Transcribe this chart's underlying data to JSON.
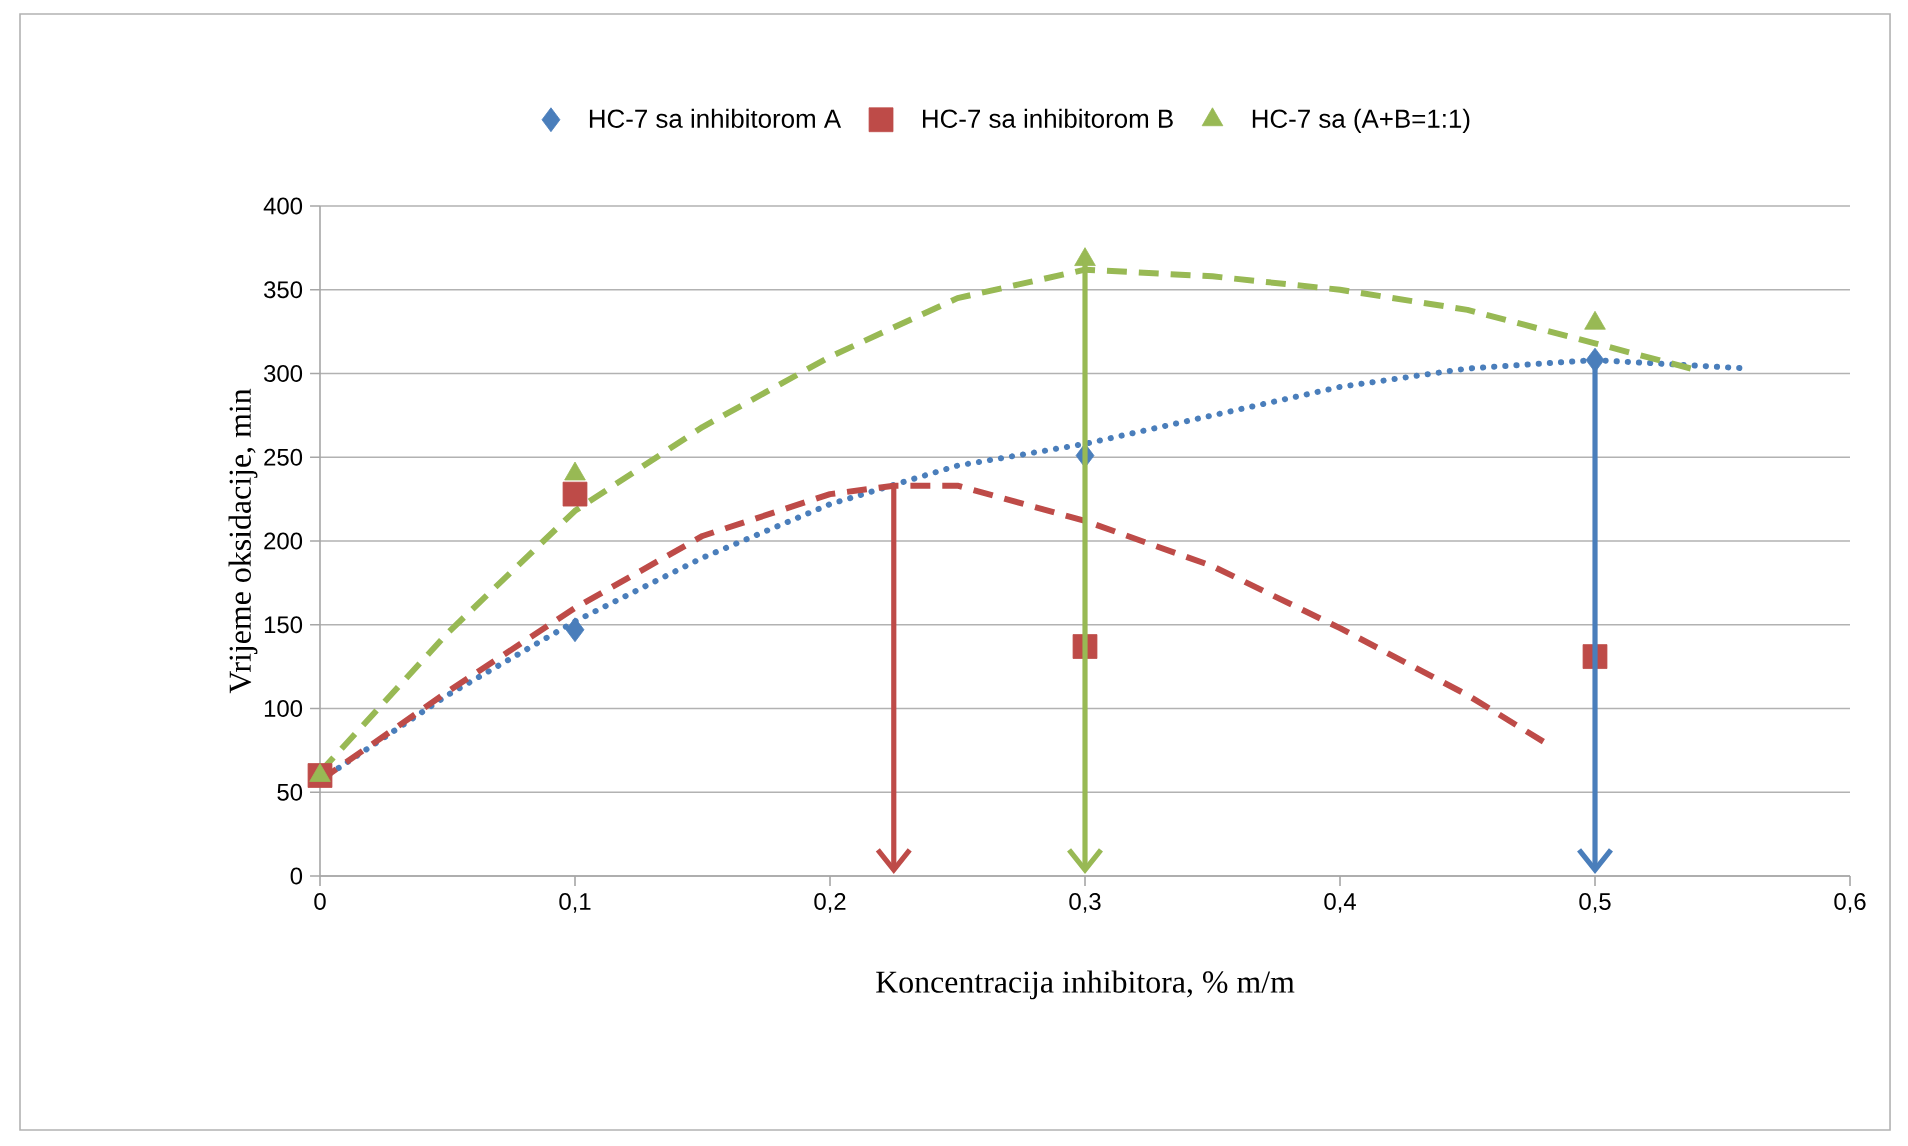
{
  "chart_data": {
    "type": "scatter",
    "xlabel": "Koncentracija inhibitora, % m/m",
    "ylabel": "Vrijeme oksidacije, min",
    "xlim": [
      0,
      0.6
    ],
    "ylim": [
      0,
      400
    ],
    "xticks": [
      0,
      {
        "value": 0.1,
        "label": "0,1"
      },
      {
        "value": 0.2,
        "label": "0,2"
      },
      {
        "value": 0.3,
        "label": "0,3"
      },
      {
        "value": 0.4,
        "label": "0,4"
      },
      {
        "value": 0.5,
        "label": "0,5"
      },
      {
        "value": 0.6,
        "label": "0,6"
      }
    ],
    "yticks": [
      0,
      50,
      100,
      150,
      200,
      250,
      300,
      350,
      400
    ],
    "grid": "y",
    "legend": "top",
    "ref_lines": [
      {
        "axis": "x",
        "value": 0.225,
        "color": "#be4b48"
      },
      {
        "axis": "x",
        "value": 0.3,
        "color": "#98b954"
      },
      {
        "axis": "x",
        "value": 0.5,
        "color": "#4a7ebb"
      }
    ],
    "series": [
      {
        "name": "HC-7 sa inhibitorom A",
        "marker": "diamond",
        "color": "#4a7ebb",
        "x": [
          0.1,
          0.3,
          0.5
        ],
        "values": [
          147,
          251,
          308
        ]
      },
      {
        "name": "HC-7 sa inhibitorom B",
        "marker": "square",
        "color": "#be4b48",
        "x": [
          0,
          0.1,
          0.3,
          0.5
        ],
        "values": [
          60,
          228,
          137,
          131
        ]
      },
      {
        "name": "HC-7 sa (A+B=1:1)",
        "marker": "triangle",
        "color": "#98b954",
        "x": [
          0,
          0.1,
          0.3,
          0.5
        ],
        "values": [
          60,
          240,
          368,
          330
        ]
      },
      {
        "type": "line",
        "line_style": "dotted",
        "color": "#4a7ebb",
        "x": [
          0,
          0.05,
          0.1,
          0.15,
          0.2,
          0.25,
          0.3,
          0.35,
          0.4,
          0.45,
          0.5,
          0.56
        ],
        "values": [
          57,
          108,
          152,
          190,
          222,
          245,
          258,
          275,
          292,
          303,
          308,
          303
        ]
      },
      {
        "type": "line",
        "line_style": "dashed",
        "color": "#be4b48",
        "x": [
          0,
          0.05,
          0.1,
          0.15,
          0.2,
          0.225,
          0.25,
          0.3,
          0.35,
          0.4,
          0.45,
          0.48
        ],
        "values": [
          57,
          110,
          160,
          203,
          228,
          233,
          233,
          212,
          185,
          148,
          108,
          80
        ]
      },
      {
        "type": "line",
        "line_style": "dashed",
        "color": "#98b954",
        "x": [
          0,
          0.05,
          0.1,
          0.15,
          0.2,
          0.25,
          0.3,
          0.35,
          0.4,
          0.45,
          0.5,
          0.54
        ],
        "values": [
          62,
          145,
          218,
          268,
          310,
          345,
          362,
          358,
          350,
          338,
          318,
          302
        ]
      }
    ]
  }
}
